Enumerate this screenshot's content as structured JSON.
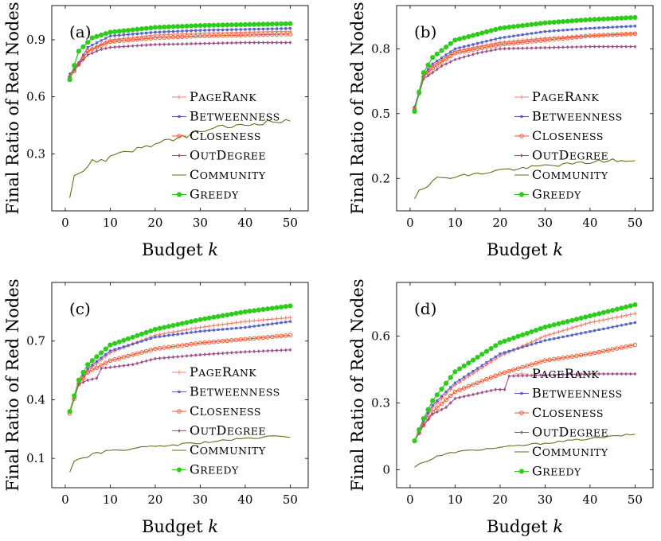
{
  "figure": {
    "colors": {
      "PageRank": "#f08070",
      "Betweenness": "#5a64c8",
      "Closeness": "#f05a32",
      "OutDegree": "#a0508a",
      "Community": "#6b6b20",
      "Greedy": "#2ecc1a"
    },
    "legend_labels": [
      "PageRank",
      "Betweenness",
      "Closeness",
      "OutDegree",
      "Community",
      "Greedy"
    ]
  },
  "chart_data": [
    {
      "type": "line",
      "panel_label": "(a)",
      "xlabel": "Budget k",
      "ylabel": "Final Ratio of Red Nodes",
      "xlim": [
        -3,
        54
      ],
      "ylim": [
        0.0,
        1.08
      ],
      "xticks": [
        0,
        10,
        20,
        30,
        40,
        50
      ],
      "yticks": [
        0.3,
        0.6,
        0.9
      ],
      "ytick_labels": [
        "0.3",
        "0.6",
        "0.9"
      ],
      "legend_position": "center-right",
      "series": [
        {
          "name": "PageRank",
          "anchors": [
            [
              1,
              0.71
            ],
            [
              5,
              0.84
            ],
            [
              10,
              0.9
            ],
            [
              20,
              0.925
            ],
            [
              30,
              0.935
            ],
            [
              40,
              0.94
            ],
            [
              50,
              0.945
            ]
          ],
          "marker": "plus"
        },
        {
          "name": "Betweenness",
          "anchors": [
            [
              1,
              0.7
            ],
            [
              5,
              0.86
            ],
            [
              10,
              0.92
            ],
            [
              20,
              0.94
            ],
            [
              30,
              0.95
            ],
            [
              40,
              0.955
            ],
            [
              50,
              0.96
            ]
          ],
          "marker": "square"
        },
        {
          "name": "Closeness",
          "anchors": [
            [
              1,
              0.7
            ],
            [
              5,
              0.84
            ],
            [
              10,
              0.89
            ],
            [
              20,
              0.91
            ],
            [
              30,
              0.92
            ],
            [
              40,
              0.925
            ],
            [
              50,
              0.93
            ]
          ],
          "marker": "circle-open"
        },
        {
          "name": "OutDegree",
          "anchors": [
            [
              1,
              0.72
            ],
            [
              5,
              0.82
            ],
            [
              8,
              0.85
            ],
            [
              10,
              0.86
            ],
            [
              20,
              0.875
            ],
            [
              30,
              0.88
            ],
            [
              40,
              0.885
            ],
            [
              50,
              0.885
            ]
          ],
          "marker": "diamond"
        },
        {
          "name": "Community",
          "anchors": [
            [
              1,
              0.08
            ],
            [
              2,
              0.19
            ],
            [
              4,
              0.21
            ],
            [
              6,
              0.26
            ],
            [
              9,
              0.27
            ],
            [
              12,
              0.31
            ],
            [
              15,
              0.32
            ],
            [
              20,
              0.35
            ],
            [
              25,
              0.38
            ],
            [
              30,
              0.42
            ],
            [
              35,
              0.44
            ],
            [
              40,
              0.45
            ],
            [
              45,
              0.47
            ],
            [
              50,
              0.47
            ]
          ],
          "marker": "none",
          "jitter": 0.012
        },
        {
          "name": "Greedy",
          "anchors": [
            [
              1,
              0.69
            ],
            [
              3,
              0.84
            ],
            [
              6,
              0.91
            ],
            [
              10,
              0.94
            ],
            [
              20,
              0.965
            ],
            [
              30,
              0.975
            ],
            [
              40,
              0.98
            ],
            [
              50,
              0.985
            ]
          ],
          "marker": "dot"
        }
      ]
    },
    {
      "type": "line",
      "panel_label": "(b)",
      "xlabel": "Budget k",
      "ylabel": "Final Ratio of Red Nodes",
      "xlim": [
        -3,
        54
      ],
      "ylim": [
        0.05,
        1.0
      ],
      "xticks": [
        0,
        10,
        20,
        30,
        40,
        50
      ],
      "yticks": [
        0.2,
        0.5,
        0.8
      ],
      "ytick_labels": [
        "0.2",
        "0.5",
        "0.8"
      ],
      "legend_position": "center-right",
      "series": [
        {
          "name": "PageRank",
          "anchors": [
            [
              1,
              0.53
            ],
            [
              3,
              0.67
            ],
            [
              5,
              0.72
            ],
            [
              10,
              0.79
            ],
            [
              20,
              0.83
            ],
            [
              30,
              0.85
            ],
            [
              40,
              0.86
            ],
            [
              50,
              0.87
            ]
          ],
          "marker": "plus"
        },
        {
          "name": "Betweenness",
          "anchors": [
            [
              1,
              0.53
            ],
            [
              3,
              0.68
            ],
            [
              5,
              0.73
            ],
            [
              10,
              0.8
            ],
            [
              20,
              0.85
            ],
            [
              30,
              0.88
            ],
            [
              40,
              0.895
            ],
            [
              50,
              0.905
            ]
          ],
          "marker": "square"
        },
        {
          "name": "Closeness",
          "anchors": [
            [
              1,
              0.52
            ],
            [
              3,
              0.67
            ],
            [
              5,
              0.71
            ],
            [
              10,
              0.78
            ],
            [
              20,
              0.82
            ],
            [
              30,
              0.84
            ],
            [
              40,
              0.86
            ],
            [
              50,
              0.87
            ]
          ],
          "marker": "circle-open"
        },
        {
          "name": "OutDegree",
          "anchors": [
            [
              1,
              0.52
            ],
            [
              3,
              0.66
            ],
            [
              5,
              0.69
            ],
            [
              7,
              0.72
            ],
            [
              10,
              0.75
            ],
            [
              15,
              0.78
            ],
            [
              20,
              0.8
            ],
            [
              30,
              0.805
            ],
            [
              40,
              0.81
            ],
            [
              50,
              0.81
            ]
          ],
          "marker": "diamond"
        },
        {
          "name": "Community",
          "anchors": [
            [
              1,
              0.11
            ],
            [
              2,
              0.15
            ],
            [
              4,
              0.17
            ],
            [
              6,
              0.2
            ],
            [
              10,
              0.21
            ],
            [
              15,
              0.22
            ],
            [
              20,
              0.24
            ],
            [
              25,
              0.245
            ],
            [
              30,
              0.26
            ],
            [
              35,
              0.265
            ],
            [
              40,
              0.275
            ],
            [
              45,
              0.285
            ],
            [
              50,
              0.275
            ]
          ],
          "marker": "none",
          "jitter": 0.008
        },
        {
          "name": "Greedy",
          "anchors": [
            [
              1,
              0.51
            ],
            [
              3,
              0.69
            ],
            [
              5,
              0.76
            ],
            [
              10,
              0.84
            ],
            [
              20,
              0.895
            ],
            [
              30,
              0.92
            ],
            [
              40,
              0.935
            ],
            [
              50,
              0.945
            ]
          ],
          "marker": "dot"
        }
      ]
    },
    {
      "type": "line",
      "panel_label": "(c)",
      "xlabel": "Budget k",
      "ylabel": "Final Ratio of Red Nodes",
      "xlim": [
        -3,
        54
      ],
      "ylim": [
        -0.05,
        1.0
      ],
      "xticks": [
        0,
        10,
        20,
        30,
        40,
        50
      ],
      "yticks": [
        0.1,
        0.4,
        0.7
      ],
      "ytick_labels": [
        "0.1",
        "0.4",
        "0.7"
      ],
      "legend_position": "center-right",
      "series": [
        {
          "name": "PageRank",
          "anchors": [
            [
              1,
              0.34
            ],
            [
              3,
              0.48
            ],
            [
              5,
              0.55
            ],
            [
              10,
              0.64
            ],
            [
              20,
              0.73
            ],
            [
              30,
              0.77
            ],
            [
              40,
              0.8
            ],
            [
              50,
              0.82
            ]
          ],
          "marker": "plus"
        },
        {
          "name": "Betweenness",
          "anchors": [
            [
              1,
              0.34
            ],
            [
              3,
              0.49
            ],
            [
              5,
              0.56
            ],
            [
              10,
              0.65
            ],
            [
              20,
              0.72
            ],
            [
              30,
              0.75
            ],
            [
              40,
              0.77
            ],
            [
              50,
              0.8
            ]
          ],
          "marker": "square"
        },
        {
          "name": "Closeness",
          "anchors": [
            [
              1,
              0.33
            ],
            [
              3,
              0.48
            ],
            [
              5,
              0.54
            ],
            [
              10,
              0.6
            ],
            [
              20,
              0.66
            ],
            [
              30,
              0.69
            ],
            [
              40,
              0.71
            ],
            [
              50,
              0.73
            ]
          ],
          "marker": "circle-open"
        },
        {
          "name": "OutDegree",
          "anchors": [
            [
              1,
              0.34
            ],
            [
              3,
              0.48
            ],
            [
              5,
              0.5
            ],
            [
              7,
              0.51
            ],
            [
              8,
              0.56
            ],
            [
              15,
              0.58
            ],
            [
              20,
              0.61
            ],
            [
              30,
              0.63
            ],
            [
              40,
              0.645
            ],
            [
              50,
              0.655
            ]
          ],
          "marker": "diamond"
        },
        {
          "name": "Community",
          "anchors": [
            [
              1,
              0.03
            ],
            [
              2,
              0.09
            ],
            [
              4,
              0.1
            ],
            [
              6,
              0.12
            ],
            [
              10,
              0.14
            ],
            [
              15,
              0.15
            ],
            [
              20,
              0.16
            ],
            [
              25,
              0.17
            ],
            [
              30,
              0.18
            ],
            [
              35,
              0.19
            ],
            [
              40,
              0.2
            ],
            [
              45,
              0.21
            ],
            [
              50,
              0.21
            ]
          ],
          "marker": "none",
          "jitter": 0.006
        },
        {
          "name": "Greedy",
          "anchors": [
            [
              1,
              0.34
            ],
            [
              3,
              0.5
            ],
            [
              5,
              0.58
            ],
            [
              10,
              0.68
            ],
            [
              20,
              0.76
            ],
            [
              30,
              0.81
            ],
            [
              40,
              0.85
            ],
            [
              50,
              0.88
            ]
          ],
          "marker": "dot"
        }
      ]
    },
    {
      "type": "line",
      "panel_label": "(d)",
      "xlabel": "Budget k",
      "ylabel": "Final Ratio of Red Nodes",
      "xlim": [
        -3,
        54
      ],
      "ylim": [
        -0.08,
        0.84
      ],
      "xticks": [
        0,
        10,
        20,
        30,
        40,
        50
      ],
      "yticks": [
        0,
        0.3,
        0.6
      ],
      "ytick_labels": [
        "0",
        "0.3",
        "0.6"
      ],
      "legend_position": "bottom-right",
      "series": [
        {
          "name": "PageRank",
          "anchors": [
            [
              1,
              0.13
            ],
            [
              3,
              0.21
            ],
            [
              5,
              0.28
            ],
            [
              10,
              0.38
            ],
            [
              20,
              0.51
            ],
            [
              30,
              0.6
            ],
            [
              40,
              0.66
            ],
            [
              50,
              0.7
            ]
          ],
          "marker": "plus"
        },
        {
          "name": "Betweenness",
          "anchors": [
            [
              1,
              0.13
            ],
            [
              3,
              0.22
            ],
            [
              5,
              0.29
            ],
            [
              10,
              0.39
            ],
            [
              20,
              0.52
            ],
            [
              30,
              0.58
            ],
            [
              40,
              0.62
            ],
            [
              50,
              0.66
            ]
          ],
          "marker": "square"
        },
        {
          "name": "Closeness",
          "anchors": [
            [
              1,
              0.13
            ],
            [
              3,
              0.2
            ],
            [
              5,
              0.26
            ],
            [
              10,
              0.35
            ],
            [
              20,
              0.43
            ],
            [
              30,
              0.49
            ],
            [
              40,
              0.52
            ],
            [
              50,
              0.56
            ]
          ],
          "marker": "circle-open"
        },
        {
          "name": "OutDegree",
          "anchors": [
            [
              1,
              0.13
            ],
            [
              3,
              0.2
            ],
            [
              5,
              0.25
            ],
            [
              8,
              0.28
            ],
            [
              10,
              0.32
            ],
            [
              19,
              0.36
            ],
            [
              21,
              0.36
            ],
            [
              22,
              0.42
            ],
            [
              30,
              0.425
            ],
            [
              40,
              0.43
            ],
            [
              50,
              0.43
            ]
          ],
          "marker": "diamond"
        },
        {
          "name": "Community",
          "anchors": [
            [
              1,
              0.01
            ],
            [
              2,
              0.03
            ],
            [
              4,
              0.04
            ],
            [
              6,
              0.06
            ],
            [
              10,
              0.08
            ],
            [
              15,
              0.09
            ],
            [
              20,
              0.1
            ],
            [
              25,
              0.11
            ],
            [
              30,
              0.12
            ],
            [
              35,
              0.13
            ],
            [
              40,
              0.14
            ],
            [
              45,
              0.15
            ],
            [
              50,
              0.16
            ]
          ],
          "marker": "none",
          "jitter": 0.004
        },
        {
          "name": "Greedy",
          "anchors": [
            [
              1,
              0.13
            ],
            [
              3,
              0.23
            ],
            [
              5,
              0.31
            ],
            [
              10,
              0.44
            ],
            [
              20,
              0.57
            ],
            [
              30,
              0.64
            ],
            [
              40,
              0.69
            ],
            [
              50,
              0.74
            ]
          ],
          "marker": "dot"
        }
      ]
    }
  ]
}
